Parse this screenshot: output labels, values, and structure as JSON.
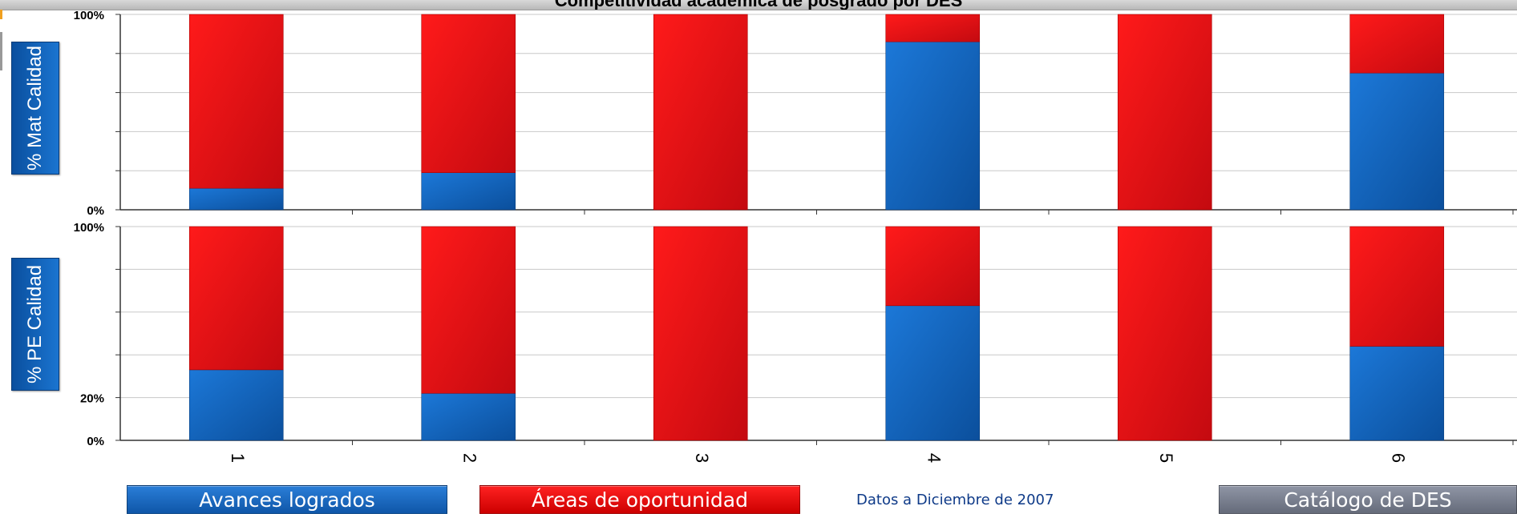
{
  "window": {
    "title": "Competitividad académica de posgrado por DES"
  },
  "chart_data": [
    {
      "type": "bar",
      "stacked": true,
      "ylabel": "% Mat Calidad",
      "ylim": [
        0,
        100
      ],
      "y_tick_labels": [
        "0%",
        "100%"
      ],
      "categories": [
        "1",
        "2",
        "3",
        "4",
        "5",
        "6"
      ],
      "series": [
        {
          "name": "Avances logrados",
          "color": "#1466c4",
          "values": [
            11,
            19,
            0,
            86,
            0,
            70
          ]
        },
        {
          "name": "Áreas de oportunidad",
          "color": "#e8141c",
          "values": [
            89,
            81,
            100,
            14,
            100,
            30
          ]
        }
      ],
      "grid": true
    },
    {
      "type": "bar",
      "stacked": true,
      "ylabel": "% PE Calidad",
      "ylim": [
        0,
        100
      ],
      "y_tick_labels": [
        "0%",
        "20%",
        "100%"
      ],
      "categories": [
        "1",
        "2",
        "3",
        "4",
        "5",
        "6"
      ],
      "series": [
        {
          "name": "Avances logrados",
          "color": "#1466c4",
          "values": [
            33,
            22,
            0,
            63,
            0,
            44
          ]
        },
        {
          "name": "Áreas de oportunidad",
          "color": "#e8141c",
          "values": [
            67,
            78,
            100,
            37,
            100,
            56
          ]
        }
      ],
      "grid": true
    }
  ],
  "buttons": {
    "avances": "Avances logrados",
    "areas": "Áreas de oportunidad",
    "catalogo": "Catálogo de DES"
  },
  "note": "Datos a Diciembre de 2007"
}
